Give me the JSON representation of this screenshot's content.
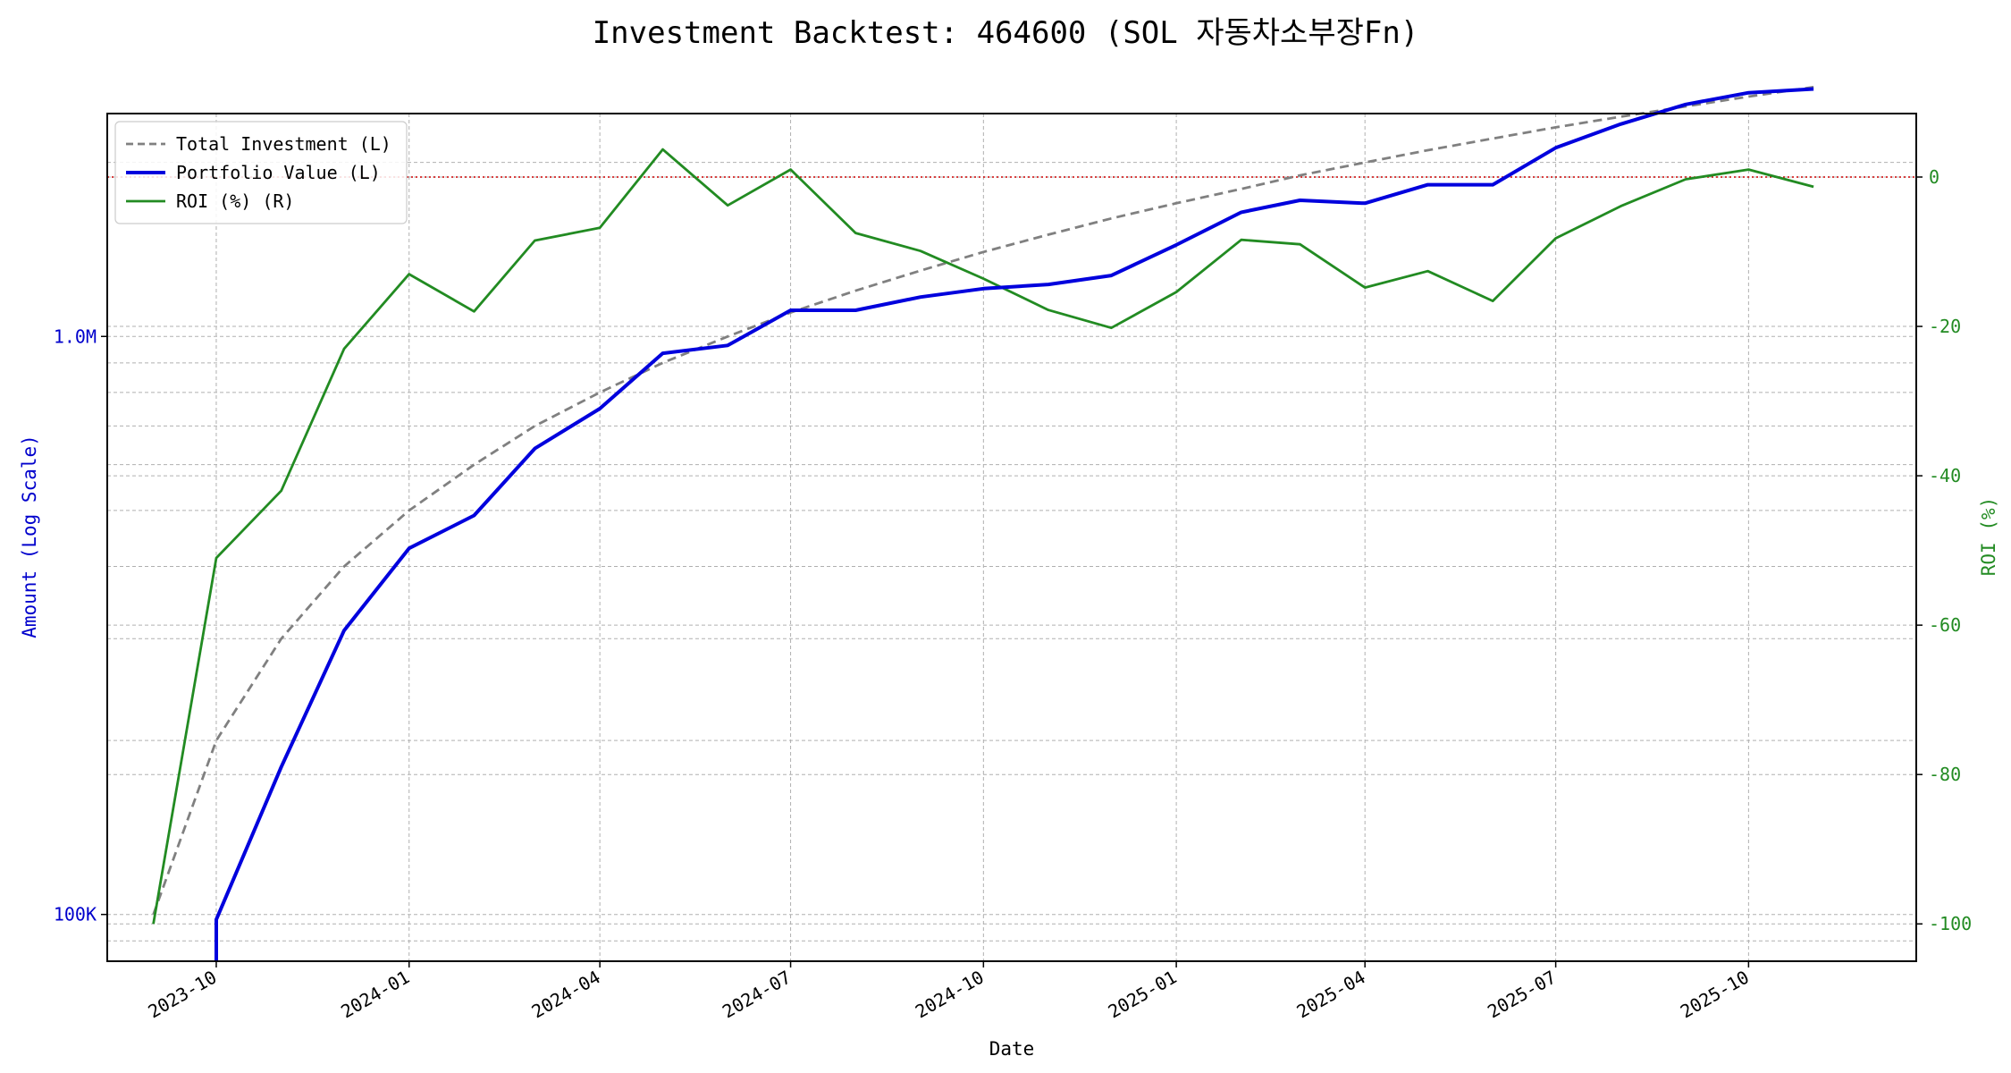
{
  "chart_data": {
    "type": "line",
    "title": "Investment Backtest: 464600 (SOL 자동차소부장Fn)",
    "xlabel": "Date",
    "ylabel_left": "Amount (Log Scale)",
    "ylabel_right": "ROI (%)",
    "x_ticks": [
      "2023-10",
      "2024-01",
      "2024-04",
      "2024-07",
      "2024-10",
      "2025-01",
      "2025-04",
      "2025-07",
      "2025-10"
    ],
    "x_range": [
      "2023-08-10",
      "2025-12-20"
    ],
    "y_left_scale": "log",
    "y_left_range": [
      83000,
      2430000
    ],
    "y_left_ticks": [
      {
        "value": 100000,
        "label": "100K"
      },
      {
        "value": 1000000,
        "label": "1.0M"
      }
    ],
    "y_right_range": [
      -105,
      8.5
    ],
    "y_right_ticks": [
      0,
      -20,
      -40,
      -60,
      -80,
      -100
    ],
    "grid": true,
    "legend_position": "top-left",
    "zero_reference_line": {
      "axis": "right",
      "value": 0,
      "color": "#cc0000",
      "style": "dotted"
    },
    "colors": {
      "left_axis": "#0000cc",
      "right_axis": "#228b22"
    },
    "series": [
      {
        "name": "Total Investment (L)",
        "axis": "left",
        "color": "#808080",
        "style": "dashed",
        "x": [
          "2023-09-01",
          "2023-10-01",
          "2023-11-01",
          "2023-12-01",
          "2024-01-01",
          "2024-02-01",
          "2024-03-01",
          "2024-04-01",
          "2024-05-01",
          "2024-06-01",
          "2024-07-01",
          "2024-08-01",
          "2024-09-01",
          "2024-10-01",
          "2024-11-01",
          "2024-12-01",
          "2025-01-01",
          "2025-02-01",
          "2025-03-01",
          "2025-04-01",
          "2025-05-01",
          "2025-06-01",
          "2025-07-01",
          "2025-08-01",
          "2025-09-01",
          "2025-10-01",
          "2025-11-01"
        ],
        "values": [
          100000,
          200000,
          300000,
          400000,
          500000,
          600000,
          700000,
          800000,
          900000,
          1000000,
          1100000,
          1200000,
          1300000,
          1400000,
          1500000,
          1600000,
          1700000,
          1800000,
          1900000,
          2000000,
          2100000,
          2200000,
          2300000,
          2400000,
          2500000,
          2600000,
          2700000
        ]
      },
      {
        "name": "Portfolio Value (L)",
        "axis": "left",
        "color": "#0000dd",
        "style": "solid",
        "x": [
          "2023-10-01",
          "2023-10-01",
          "2023-11-01",
          "2023-12-01",
          "2024-01-01",
          "2024-02-01",
          "2024-03-01",
          "2024-04-01",
          "2024-05-01",
          "2024-06-01",
          "2024-07-01",
          "2024-08-01",
          "2024-09-01",
          "2024-10-01",
          "2024-11-01",
          "2024-12-01",
          "2025-01-01",
          "2025-02-01",
          "2025-03-01",
          "2025-04-01",
          "2025-05-01",
          "2025-06-01",
          "2025-07-01",
          "2025-08-01",
          "2025-09-01",
          "2025-10-01",
          "2025-11-01"
        ],
        "values": [
          83000,
          98000,
          180000,
          310000,
          430000,
          490000,
          640000,
          750000,
          935000,
          965000,
          1110000,
          1110000,
          1170000,
          1210000,
          1230000,
          1275000,
          1440000,
          1640000,
          1720000,
          1700000,
          1830000,
          1830000,
          2120000,
          2330000,
          2520000,
          2640000,
          2680000
        ]
      },
      {
        "name": "ROI (%) (R)",
        "axis": "right",
        "color": "#228b22",
        "style": "solid",
        "x": [
          "2023-09-01",
          "2023-10-01",
          "2023-11-01",
          "2023-12-01",
          "2024-01-01",
          "2024-02-01",
          "2024-03-01",
          "2024-04-01",
          "2024-05-01",
          "2024-06-01",
          "2024-07-01",
          "2024-08-01",
          "2024-09-01",
          "2024-10-01",
          "2024-11-01",
          "2024-12-01",
          "2025-01-01",
          "2025-02-01",
          "2025-03-01",
          "2025-04-01",
          "2025-05-01",
          "2025-06-01",
          "2025-07-01",
          "2025-08-01",
          "2025-09-01",
          "2025-10-01",
          "2025-11-01"
        ],
        "values": [
          -100,
          -51,
          -42,
          -23,
          -13,
          -18,
          -8.5,
          -6.8,
          3.7,
          -3.8,
          1.0,
          -7.5,
          -9.9,
          -13.6,
          -17.8,
          -20.2,
          -15.4,
          -8.4,
          -9.0,
          -14.8,
          -12.6,
          -16.6,
          -8.2,
          -3.9,
          -0.3,
          1.0,
          -1.3
        ]
      }
    ]
  }
}
